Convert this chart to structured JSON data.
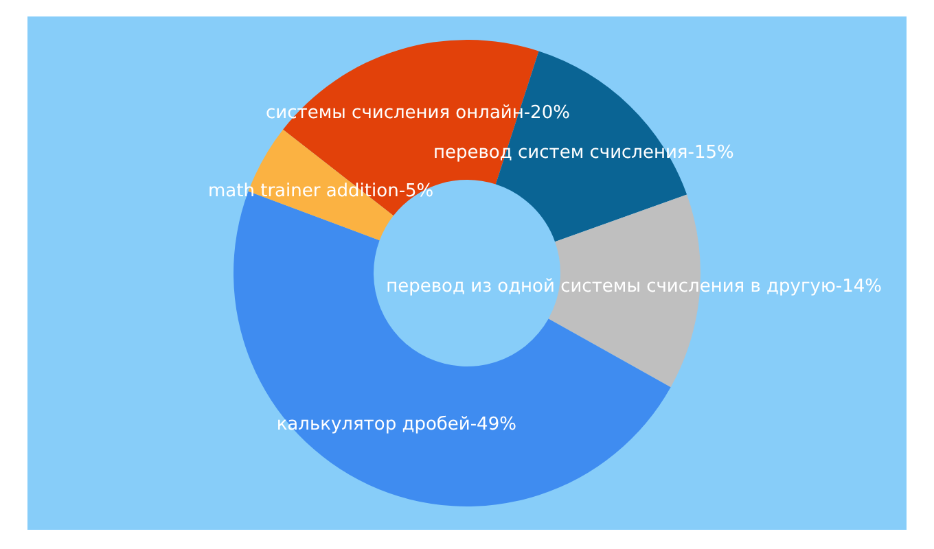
{
  "chart_data": {
    "type": "donut",
    "categories": [
      "системы счисления онлайн",
      "перевод систем счисления",
      "перевод из одной системы счисления в другую",
      "калькулятор дробей",
      "math trainer addition"
    ],
    "values": [
      20,
      15,
      14,
      49,
      5
    ],
    "value_labels": [
      "20%",
      "15%",
      "14%",
      "49%",
      "5%"
    ],
    "colors": [
      "#e2410a",
      "#0a6494",
      "#bfbfbf",
      "#3f8cf0",
      "#fbb242"
    ]
  }
}
